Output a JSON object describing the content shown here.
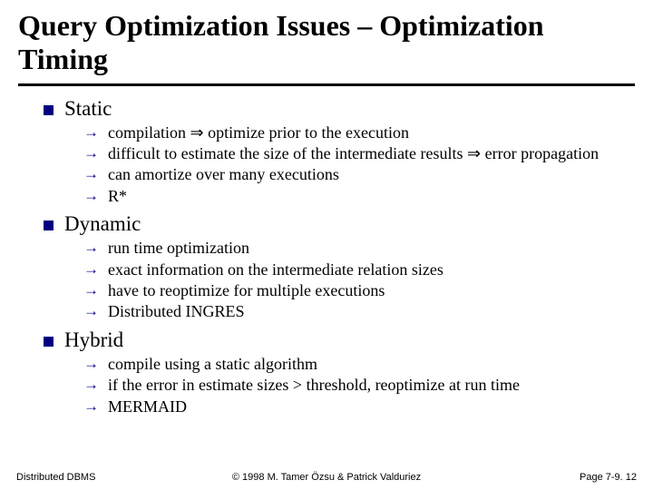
{
  "title": "Query Optimization Issues – Optimization Timing",
  "colors": {
    "accent": "#000080",
    "text": "#000000",
    "background": "#ffffff"
  },
  "sections": [
    {
      "label": "Static",
      "items": [
        "compilation ⇒ optimize prior to the execution",
        "difficult to estimate the size of the intermediate results ⇒ error propagation",
        "can amortize over many executions",
        "R*"
      ]
    },
    {
      "label": "Dynamic",
      "items": [
        "run time optimization",
        "exact information on the intermediate relation sizes",
        "have to reoptimize for multiple executions",
        "Distributed INGRES"
      ]
    },
    {
      "label": "Hybrid",
      "items": [
        "compile using a static algorithm",
        "if the error in estimate sizes > threshold, reoptimize at run time",
        "MERMAID"
      ]
    }
  ],
  "footer": {
    "left": "Distributed DBMS",
    "center": "© 1998 M. Tamer Özsu & Patrick Valduriez",
    "right": "Page 7-9. 12"
  }
}
